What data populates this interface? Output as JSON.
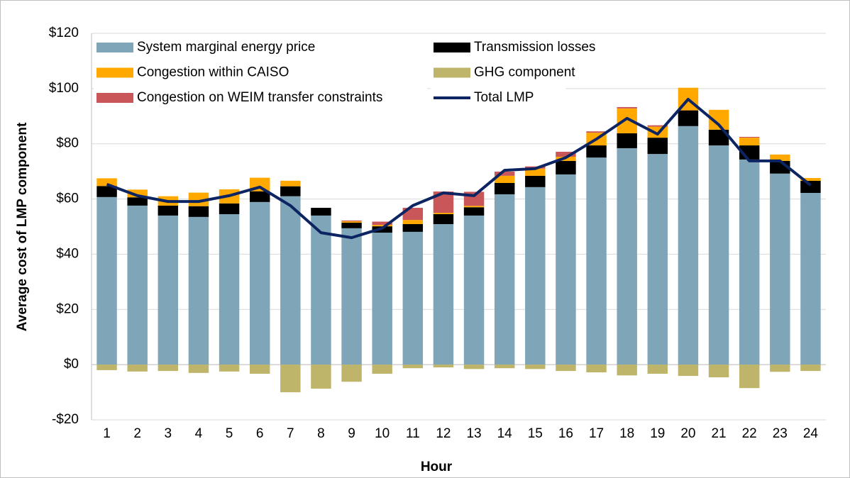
{
  "chart_data": {
    "type": "bar",
    "stacked": true,
    "xlabel": "Hour",
    "ylabel": "Average cost of LMP component",
    "categories": [
      "1",
      "2",
      "3",
      "4",
      "5",
      "6",
      "7",
      "8",
      "9",
      "10",
      "11",
      "12",
      "13",
      "14",
      "15",
      "16",
      "17",
      "18",
      "19",
      "20",
      "21",
      "22",
      "23",
      "24"
    ],
    "series": [
      {
        "name": "System marginal energy price",
        "color": "#7fa5b9",
        "values": [
          60.7,
          57.6,
          54,
          53.5,
          54.5,
          58.9,
          61,
          54,
          49.4,
          47.8,
          48.1,
          50.9,
          54,
          61.7,
          64.3,
          68.9,
          75,
          78.4,
          76.3,
          86.4,
          79.4,
          74.3,
          69.2,
          62.2
        ]
      },
      {
        "name": "Transmission losses",
        "color": "#000000",
        "values": [
          4,
          3,
          3.6,
          3.9,
          3.9,
          3.9,
          3.6,
          2.8,
          2,
          2.3,
          2.8,
          3.6,
          3,
          4.1,
          4.1,
          4.9,
          4.4,
          5.4,
          5.9,
          5.7,
          5.7,
          5.1,
          4.6,
          4.4
        ]
      },
      {
        "name": "Congestion within CAISO",
        "color": "#ffa800",
        "values": [
          2.8,
          2.8,
          3.4,
          4.9,
          5.1,
          4.9,
          2,
          0,
          0.5,
          0.5,
          1.5,
          0.5,
          0.5,
          2.6,
          2.6,
          1.5,
          4.6,
          9,
          4,
          8.2,
          7.2,
          2.8,
          2.3,
          1
        ]
      },
      {
        "name": "GHG component",
        "color": "#bfb56a",
        "values": [
          -2,
          -2.5,
          -2.3,
          -3,
          -2.5,
          -3.3,
          -10,
          -8.7,
          -6.2,
          -3.3,
          -1.3,
          -1,
          -1.6,
          -1.3,
          -1.6,
          -2.3,
          -2.8,
          -3.9,
          -3.3,
          -4.1,
          -4.6,
          -8.5,
          -2.6,
          -2.3
        ]
      },
      {
        "name": "Congestion on WEIM transfer constraints",
        "color": "#c9575a",
        "values": [
          0,
          0,
          0,
          0,
          0,
          0,
          0,
          0,
          0.3,
          1.2,
          4.4,
          7.7,
          5.1,
          1.5,
          0.8,
          1.8,
          0.5,
          0.5,
          0.5,
          0,
          0,
          0.3,
          0,
          0
        ]
      },
      {
        "name": "Total LMP",
        "type": "line",
        "color": "#0c2461",
        "values": [
          65.3,
          61.2,
          59.1,
          59.1,
          61.2,
          64.3,
          57.6,
          47.8,
          46,
          49.4,
          57.6,
          62.2,
          61.2,
          70.4,
          71,
          75,
          81.7,
          89.2,
          83.5,
          96.1,
          86.9,
          73.8,
          73.8,
          65
        ]
      }
    ],
    "ylim": [
      -20,
      120
    ],
    "yticks": [
      {
        "value": -20,
        "label": "-$20"
      },
      {
        "value": 0,
        "label": "$0"
      },
      {
        "value": 20,
        "label": "$20"
      },
      {
        "value": 40,
        "label": "$40"
      },
      {
        "value": 60,
        "label": "$60"
      },
      {
        "value": 80,
        "label": "$80"
      },
      {
        "value": 100,
        "label": "$100"
      },
      {
        "value": 120,
        "label": "$120"
      }
    ],
    "grid": true,
    "legend": "top-left"
  }
}
